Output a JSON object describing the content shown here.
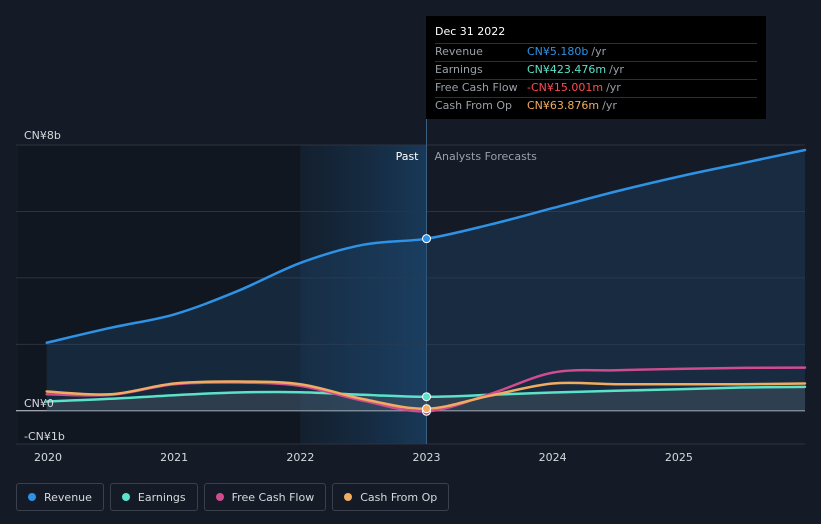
{
  "chart_data": {
    "type": "line",
    "title": "",
    "xlabel": "",
    "ylabel": "",
    "x_ticks": [
      "2020",
      "2021",
      "2022",
      "2023",
      "2024",
      "2025"
    ],
    "y_ticks": [
      {
        "label": "CN¥8b",
        "value": 8
      },
      {
        "label": "CN¥0",
        "value": 0
      },
      {
        "label": "-CN¥1b",
        "value": -1
      }
    ],
    "ylim": [
      -1,
      8
    ],
    "xlim": [
      2020,
      2026
    ],
    "divider_x": 2023,
    "past_label": "Past",
    "forecast_label": "Analysts Forecasts",
    "series": [
      {
        "name": "Revenue",
        "color": "#2e93e6",
        "fill": true,
        "x": [
          2019.99,
          2020.5,
          2021.0,
          2021.5,
          2022.0,
          2022.5,
          2023.0,
          2023.5,
          2024.0,
          2024.5,
          2025.0,
          2025.5,
          2026.0
        ],
        "y": [
          2.05,
          2.5,
          2.9,
          3.6,
          4.45,
          5.0,
          5.18,
          5.6,
          6.1,
          6.6,
          7.05,
          7.45,
          7.85
        ]
      },
      {
        "name": "Earnings",
        "color": "#5ce2c9",
        "fill": false,
        "x": [
          2019.99,
          2020.5,
          2021.0,
          2021.5,
          2022.0,
          2022.5,
          2023.0,
          2023.5,
          2024.0,
          2024.5,
          2025.0,
          2025.5,
          2026.0
        ],
        "y": [
          0.28,
          0.36,
          0.47,
          0.55,
          0.56,
          0.48,
          0.42,
          0.48,
          0.55,
          0.6,
          0.65,
          0.7,
          0.72
        ]
      },
      {
        "name": "Free Cash Flow",
        "color": "#d04c8f",
        "fill": false,
        "x": [
          2019.99,
          2020.5,
          2021.0,
          2021.5,
          2022.0,
          2022.5,
          2023.0,
          2023.5,
          2024.0,
          2024.5,
          2025.0,
          2025.5,
          2026.0
        ],
        "y": [
          0.5,
          0.48,
          0.8,
          0.85,
          0.75,
          0.3,
          -0.015,
          0.5,
          1.15,
          1.22,
          1.26,
          1.29,
          1.3
        ]
      },
      {
        "name": "Cash From Op",
        "color": "#f0ac62",
        "fill": false,
        "x": [
          2019.99,
          2020.5,
          2021.0,
          2021.5,
          2022.0,
          2022.5,
          2023.0,
          2023.5,
          2024.0,
          2024.5,
          2025.0,
          2025.5,
          2026.0
        ],
        "y": [
          0.58,
          0.5,
          0.82,
          0.88,
          0.8,
          0.35,
          0.064,
          0.45,
          0.82,
          0.8,
          0.8,
          0.8,
          0.82
        ]
      }
    ],
    "highlight_x": 2023,
    "highlight_points": [
      5.18,
      0.423,
      -0.015,
      0.064
    ]
  },
  "tooltip": {
    "date": "Dec 31 2022",
    "rows": [
      {
        "label": "Revenue",
        "value": "CN¥5.180b",
        "unit": "/yr",
        "color": "#2e93e6"
      },
      {
        "label": "Earnings",
        "value": "CN¥423.476m",
        "unit": "/yr",
        "color": "#5ce2c9"
      },
      {
        "label": "Free Cash Flow",
        "value": "-CN¥15.001m",
        "unit": "/yr",
        "color": "#ff4d4f"
      },
      {
        "label": "Cash From Op",
        "value": "CN¥63.876m",
        "unit": "/yr",
        "color": "#f0ac62"
      }
    ]
  },
  "legend": [
    {
      "label": "Revenue",
      "color": "#2e93e6"
    },
    {
      "label": "Earnings",
      "color": "#5ce2c9"
    },
    {
      "label": "Free Cash Flow",
      "color": "#d04c8f"
    },
    {
      "label": "Cash From Op",
      "color": "#f0ac62"
    }
  ]
}
